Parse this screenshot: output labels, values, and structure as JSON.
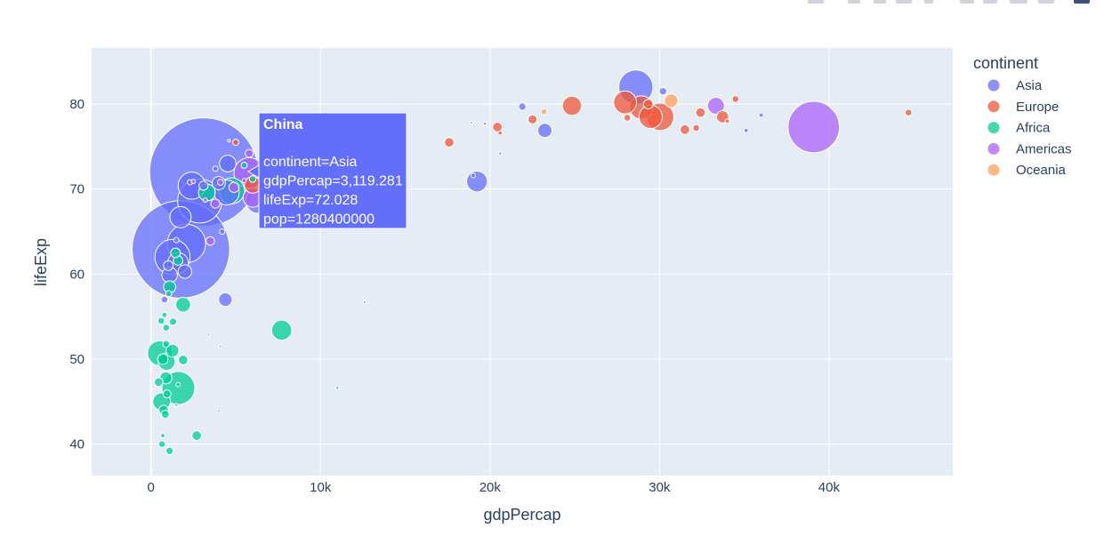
{
  "chart_data": {
    "type": "scatter",
    "subtype": "bubble",
    "xlabel": "gdpPercap",
    "ylabel": "lifeExp",
    "xlim": [
      -3500,
      47300
    ],
    "ylim": [
      36.3,
      86.6
    ],
    "x_ticks": [
      0,
      10000,
      20000,
      30000,
      40000
    ],
    "x_tick_labels": [
      "0",
      "10k",
      "20k",
      "30k",
      "40k"
    ],
    "y_ticks": [
      40,
      50,
      60,
      70,
      80
    ],
    "y_tick_labels": [
      "40",
      "50",
      "60",
      "70",
      "80"
    ],
    "grid": true,
    "legend_title": "continent",
    "legend_position": "top-right",
    "series": [
      {
        "name": "Asia",
        "color": "#636efa",
        "points": [
          [
            3119.3,
            72.0,
            1280000000
          ],
          [
            1764.5,
            62.9,
            1034000000
          ],
          [
            2873.9,
            68.6,
            211000000
          ],
          [
            28604.6,
            82.0,
            127000000
          ],
          [
            1270.4,
            62.0,
            135000000
          ],
          [
            2092.7,
            63.6,
            160000000
          ],
          [
            1594.6,
            61.3,
            47000000
          ],
          [
            2403.6,
            70.4,
            80000000
          ],
          [
            4473.5,
            69.6,
            67000000
          ],
          [
            6318.0,
            68.6,
            66000000
          ],
          [
            1742.0,
            66.7,
            49000000
          ],
          [
            4530.0,
            73.0,
            30000000
          ],
          [
            1100.0,
            59.9,
            26000000
          ],
          [
            19233.0,
            70.9,
            47000000
          ],
          [
            23235.0,
            76.9,
            22000000
          ],
          [
            4000.0,
            70.7,
            19000000
          ],
          [
            19014.0,
            71.6,
            2000000
          ],
          [
            30209.0,
            81.5,
            6000000
          ],
          [
            21905.0,
            79.7,
            6000000
          ],
          [
            2000.0,
            60.3,
            20000000
          ],
          [
            4390.0,
            57.0,
            20000000
          ],
          [
            1023.0,
            61.0,
            10000000
          ],
          [
            3100.0,
            70.4,
            9000000
          ],
          [
            800.0,
            57.0,
            5000000
          ],
          [
            1500.0,
            64.0,
            3000000
          ],
          [
            35110.0,
            76.9,
            2000000
          ],
          [
            36000.0,
            78.7,
            2000000
          ],
          [
            2300.0,
            70.8,
            3000000
          ],
          [
            3800.0,
            72.4,
            3000000
          ],
          [
            4200.0,
            65.0,
            3000000
          ],
          [
            19700.0,
            77.7,
            1000000
          ],
          [
            20600.0,
            74.2,
            1000000
          ]
        ]
      },
      {
        "name": "Europe",
        "color": "#ef553b",
        "points": [
          [
            30035.0,
            78.5,
            82000000
          ],
          [
            28926.0,
            79.6,
            59000000
          ],
          [
            29478.0,
            78.5,
            59000000
          ],
          [
            27968.0,
            80.2,
            57000000
          ],
          [
            24835.0,
            79.8,
            40000000
          ],
          [
            29341.0,
            80.0,
            10000000
          ],
          [
            17597.0,
            75.5,
            10000000
          ],
          [
            20436.0,
            77.3,
            10000000
          ],
          [
            32418.0,
            79.0,
            10000000
          ],
          [
            22510.0,
            78.2,
            9000000
          ],
          [
            28100.0,
            78.4,
            5000000
          ],
          [
            31500.0,
            77.0,
            10000000
          ],
          [
            34480.0,
            80.6,
            5000000
          ],
          [
            33725.0,
            78.5,
            16000000
          ],
          [
            44684.0,
            79.0,
            5000000
          ],
          [
            32166.0,
            77.2,
            5000000
          ],
          [
            6000.0,
            70.5,
            30000000
          ],
          [
            5000.0,
            75.5,
            4000000
          ],
          [
            20600.0,
            76.6,
            2000000
          ],
          [
            34000.0,
            78.0,
            2000000
          ]
        ]
      },
      {
        "name": "Africa",
        "color": "#00cc96",
        "points": [
          [
            1615.3,
            46.6,
            119000000
          ],
          [
            530.0,
            50.7,
            67000000
          ],
          [
            4754.6,
            69.8,
            74000000
          ],
          [
            7710.9,
            53.4,
            44000000
          ],
          [
            3300.0,
            69.6,
            31000000
          ],
          [
            630.0,
            45.0,
            34000000
          ],
          [
            924.0,
            49.7,
            32000000
          ],
          [
            1900.0,
            56.4,
            24000000
          ],
          [
            1270.0,
            51.0,
            18000000
          ],
          [
            880.0,
            47.8,
            16000000
          ],
          [
            1100.0,
            58.5,
            16000000
          ],
          [
            1600.0,
            61.6,
            10000000
          ],
          [
            750.0,
            44.0,
            10000000
          ],
          [
            700.0,
            50.0,
            12000000
          ],
          [
            2700.0,
            41.0,
            10000000
          ],
          [
            1900.0,
            49.9,
            10000000
          ],
          [
            1450.0,
            62.5,
            10000000
          ],
          [
            450.0,
            47.3,
            8000000
          ],
          [
            950.0,
            45.9,
            7000000
          ],
          [
            850.0,
            43.5,
            7000000
          ],
          [
            1100.0,
            39.2,
            6000000
          ],
          [
            650.0,
            40.0,
            5000000
          ],
          [
            1300.0,
            54.4,
            6000000
          ],
          [
            600.0,
            54.5,
            5000000
          ],
          [
            800.0,
            55.2,
            3000000
          ],
          [
            900.0,
            53.7,
            5000000
          ],
          [
            1050.0,
            57.7,
            4000000
          ],
          [
            5500.0,
            72.8,
            4000000
          ],
          [
            6000.0,
            71.2,
            5000000
          ],
          [
            12600.0,
            56.7,
            800000
          ],
          [
            11000.0,
            46.6,
            1000000
          ],
          [
            3400.0,
            52.9,
            800000
          ],
          [
            4100.0,
            51.5,
            800000
          ],
          [
            1500.0,
            44.6,
            1000000
          ],
          [
            1600.0,
            47.0,
            2000000
          ],
          [
            700.0,
            41.0,
            2000000
          ],
          [
            4000.0,
            43.9,
            600000
          ],
          [
            900.0,
            51.8,
            5000000
          ]
        ]
      },
      {
        "name": "Americas",
        "color": "#ab63fa",
        "points": [
          [
            39097.1,
            77.3,
            287000000
          ],
          [
            8000.0,
            71.5,
            179000000
          ],
          [
            6000.0,
            69.0,
            40000000
          ],
          [
            5800.0,
            71.9,
            102000000
          ],
          [
            33329.0,
            79.8,
            31000000
          ],
          [
            5800.0,
            74.2,
            7000000
          ],
          [
            4900.0,
            70.2,
            11000000
          ],
          [
            6700.0,
            77.1,
            4000000
          ],
          [
            3800.0,
            68.3,
            9000000
          ],
          [
            4100.0,
            70.8,
            4000000
          ],
          [
            3200.0,
            68.7,
            2000000
          ],
          [
            3500.0,
            63.9,
            8000000
          ],
          [
            2500.0,
            70.9,
            2000000
          ],
          [
            5500.0,
            71.0,
            2000000
          ],
          [
            18900.0,
            77.8,
            500000
          ],
          [
            4600.0,
            75.7,
            500000
          ],
          [
            7000.0,
            71.5,
            3000000
          ]
        ]
      },
      {
        "name": "Oceania",
        "color": "#ffa15a",
        "points": [
          [
            30687.8,
            80.4,
            20000000
          ],
          [
            23189.8,
            79.1,
            4000000
          ]
        ]
      }
    ]
  },
  "legend": {
    "title": "continent",
    "items": [
      {
        "label": "Asia",
        "color": "#636efa"
      },
      {
        "label": "Europe",
        "color": "#ef553b"
      },
      {
        "label": "Africa",
        "color": "#00cc96"
      },
      {
        "label": "Americas",
        "color": "#ab63fa"
      },
      {
        "label": "Oceania",
        "color": "#ffa15a"
      }
    ]
  },
  "hover": {
    "title": "China",
    "lines": [
      "continent=Asia",
      "gdpPercap=3,119.281",
      "lifeExp=72.028",
      "pop=1280400000"
    ],
    "x": 3119.281,
    "y": 72.028,
    "color": "#636efa"
  },
  "toolbar": {
    "icons": [
      "camera-icon",
      "zoom-icon",
      "pan-icon",
      "box-select-icon",
      "lasso-select-icon",
      "zoom-in-icon",
      "zoom-out-icon",
      "autoscale-icon",
      "reset-axes-icon",
      "plotly-logo-icon"
    ]
  }
}
